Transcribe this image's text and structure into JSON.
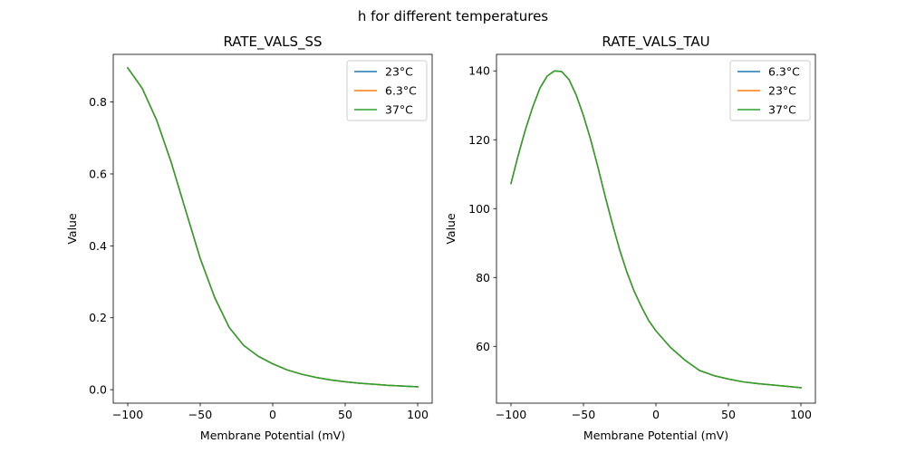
{
  "figure": {
    "suptitle": "h for different temperatures"
  },
  "chart_data": [
    {
      "type": "line",
      "title": "RATE_VALS_SS",
      "xlabel": "Membrane Potential (mV)",
      "ylabel": "Value",
      "xlim": [
        -110,
        110
      ],
      "ylim": [
        -0.0375,
        0.9325
      ],
      "xticks": [
        -100,
        -50,
        0,
        50,
        100
      ],
      "yticks": [
        0.0,
        0.2,
        0.4,
        0.6,
        0.8
      ],
      "ytick_labels": [
        "0.0",
        "0.2",
        "0.4",
        "0.6",
        "0.8"
      ],
      "grid": false,
      "legend": "top-right",
      "x": [
        -100,
        -90,
        -80,
        -70,
        -60,
        -50,
        -40,
        -30,
        -20,
        -10,
        0,
        10,
        20,
        30,
        40,
        50,
        60,
        70,
        80,
        90,
        100
      ],
      "series": [
        {
          "name": "23°C",
          "color": "#1f77b4",
          "values": [
            0.895,
            0.838,
            0.749,
            0.632,
            0.498,
            0.365,
            0.256,
            0.173,
            0.123,
            0.093,
            0.072,
            0.055,
            0.043,
            0.034,
            0.027,
            0.022,
            0.018,
            0.015,
            0.012,
            0.01,
            0.008
          ]
        },
        {
          "name": "6.3°C",
          "color": "#ff7f0e",
          "values": [
            0.895,
            0.838,
            0.749,
            0.632,
            0.498,
            0.365,
            0.256,
            0.173,
            0.123,
            0.093,
            0.072,
            0.055,
            0.043,
            0.034,
            0.027,
            0.022,
            0.018,
            0.015,
            0.012,
            0.01,
            0.008
          ]
        },
        {
          "name": "37°C",
          "color": "#2ca02c",
          "values": [
            0.895,
            0.838,
            0.749,
            0.632,
            0.498,
            0.365,
            0.256,
            0.173,
            0.123,
            0.093,
            0.072,
            0.055,
            0.043,
            0.034,
            0.027,
            0.022,
            0.018,
            0.015,
            0.012,
            0.01,
            0.008
          ]
        }
      ]
    },
    {
      "type": "line",
      "title": "RATE_VALS_TAU",
      "xlabel": "Membrane Potential (mV)",
      "ylabel": "Value",
      "xlim": [
        -110,
        110
      ],
      "ylim": [
        43.5,
        144.8
      ],
      "xticks": [
        -100,
        -50,
        0,
        50,
        100
      ],
      "yticks": [
        60,
        80,
        100,
        120,
        140
      ],
      "ytick_labels": [
        "60",
        "80",
        "100",
        "120",
        "140"
      ],
      "grid": false,
      "legend": "top-right",
      "x": [
        -100,
        -95,
        -90,
        -85,
        -80,
        -75,
        -70,
        -65,
        -60,
        -55,
        -50,
        -45,
        -40,
        -35,
        -30,
        -25,
        -20,
        -15,
        -10,
        -5,
        0,
        10,
        20,
        30,
        40,
        50,
        60,
        70,
        80,
        90,
        100
      ],
      "series": [
        {
          "name": "6.3°C",
          "color": "#1f77b4",
          "values": [
            107.3,
            115.5,
            123.0,
            129.5,
            135.0,
            138.5,
            140.0,
            139.8,
            137.5,
            133.0,
            127.0,
            120.0,
            112.0,
            103.5,
            95.5,
            88.0,
            81.5,
            76.0,
            71.5,
            67.5,
            64.5,
            59.7,
            56.0,
            53.0,
            51.5,
            50.5,
            49.7,
            49.2,
            48.8,
            48.4,
            48.0
          ]
        },
        {
          "name": "23°C",
          "color": "#ff7f0e",
          "values": [
            107.3,
            115.5,
            123.0,
            129.5,
            135.0,
            138.5,
            140.0,
            139.8,
            137.5,
            133.0,
            127.0,
            120.0,
            112.0,
            103.5,
            95.5,
            88.0,
            81.5,
            76.0,
            71.5,
            67.5,
            64.5,
            59.7,
            56.0,
            53.0,
            51.5,
            50.5,
            49.7,
            49.2,
            48.8,
            48.4,
            48.0
          ]
        },
        {
          "name": "37°C",
          "color": "#2ca02c",
          "values": [
            107.3,
            115.5,
            123.0,
            129.5,
            135.0,
            138.5,
            140.0,
            139.8,
            137.5,
            133.0,
            127.0,
            120.0,
            112.0,
            103.5,
            95.5,
            88.0,
            81.5,
            76.0,
            71.5,
            67.5,
            64.5,
            59.7,
            56.0,
            53.0,
            51.5,
            50.5,
            49.7,
            49.2,
            48.8,
            48.4,
            48.0
          ]
        }
      ]
    }
  ]
}
